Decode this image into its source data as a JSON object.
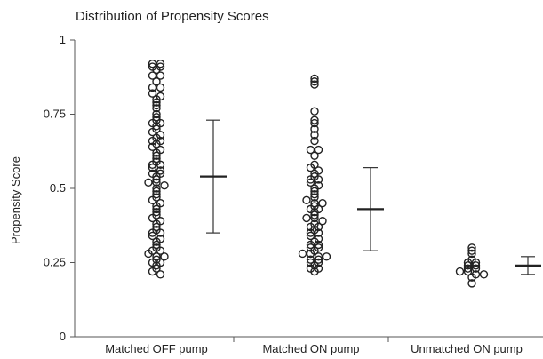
{
  "chart_data": {
    "type": "scatter",
    "title": "Distribution of Propensity Scores",
    "ylabel": "Propensity Score",
    "xlabel": "",
    "ylim": [
      0,
      1
    ],
    "yticks": [
      {
        "value": 0,
        "label": "0"
      },
      {
        "value": 0.25,
        "label": "0.25"
      },
      {
        "value": 0.5,
        "label": "0.5"
      },
      {
        "value": 0.75,
        "label": "0.75"
      },
      {
        "value": 1,
        "label": "1"
      }
    ],
    "grid": false,
    "categories": [
      "Matched OFF pump",
      "Matched ON pump",
      "Unmatched ON pump"
    ],
    "groups": [
      {
        "category": "Matched OFF pump",
        "mean": 0.54,
        "lower": 0.35,
        "upper": 0.73,
        "points": [
          0.92,
          0.91,
          0.92,
          0.91,
          0.9,
          0.88,
          0.88,
          0.86,
          0.84,
          0.84,
          0.82,
          0.81,
          0.8,
          0.79,
          0.78,
          0.77,
          0.75,
          0.74,
          0.73,
          0.72,
          0.72,
          0.71,
          0.7,
          0.69,
          0.68,
          0.67,
          0.66,
          0.66,
          0.65,
          0.64,
          0.63,
          0.62,
          0.61,
          0.6,
          0.59,
          0.58,
          0.58,
          0.57,
          0.56,
          0.55,
          0.55,
          0.54,
          0.53,
          0.52,
          0.52,
          0.51,
          0.5,
          0.49,
          0.48,
          0.47,
          0.46,
          0.45,
          0.44,
          0.43,
          0.42,
          0.41,
          0.4,
          0.39,
          0.38,
          0.37,
          0.36,
          0.35,
          0.35,
          0.34,
          0.33,
          0.32,
          0.31,
          0.3,
          0.29,
          0.29,
          0.28,
          0.27,
          0.27,
          0.26,
          0.25,
          0.25,
          0.24,
          0.23,
          0.22,
          0.21
        ]
      },
      {
        "category": "Matched ON pump",
        "mean": 0.43,
        "lower": 0.29,
        "upper": 0.57,
        "points": [
          0.87,
          0.86,
          0.85,
          0.76,
          0.73,
          0.72,
          0.7,
          0.68,
          0.66,
          0.63,
          0.63,
          0.61,
          0.58,
          0.57,
          0.56,
          0.55,
          0.54,
          0.53,
          0.53,
          0.52,
          0.51,
          0.5,
          0.49,
          0.48,
          0.47,
          0.46,
          0.45,
          0.45,
          0.44,
          0.43,
          0.43,
          0.42,
          0.41,
          0.4,
          0.4,
          0.39,
          0.38,
          0.37,
          0.37,
          0.36,
          0.35,
          0.35,
          0.34,
          0.33,
          0.32,
          0.31,
          0.31,
          0.3,
          0.3,
          0.29,
          0.28,
          0.28,
          0.27,
          0.27,
          0.26,
          0.26,
          0.25,
          0.25,
          0.24,
          0.23,
          0.23,
          0.22
        ]
      },
      {
        "category": "Unmatched ON pump",
        "mean": 0.24,
        "lower": 0.21,
        "upper": 0.27,
        "points": [
          0.3,
          0.29,
          0.28,
          0.26,
          0.25,
          0.25,
          0.24,
          0.24,
          0.23,
          0.23,
          0.22,
          0.22,
          0.21,
          0.21,
          0.2,
          0.18
        ]
      }
    ]
  }
}
